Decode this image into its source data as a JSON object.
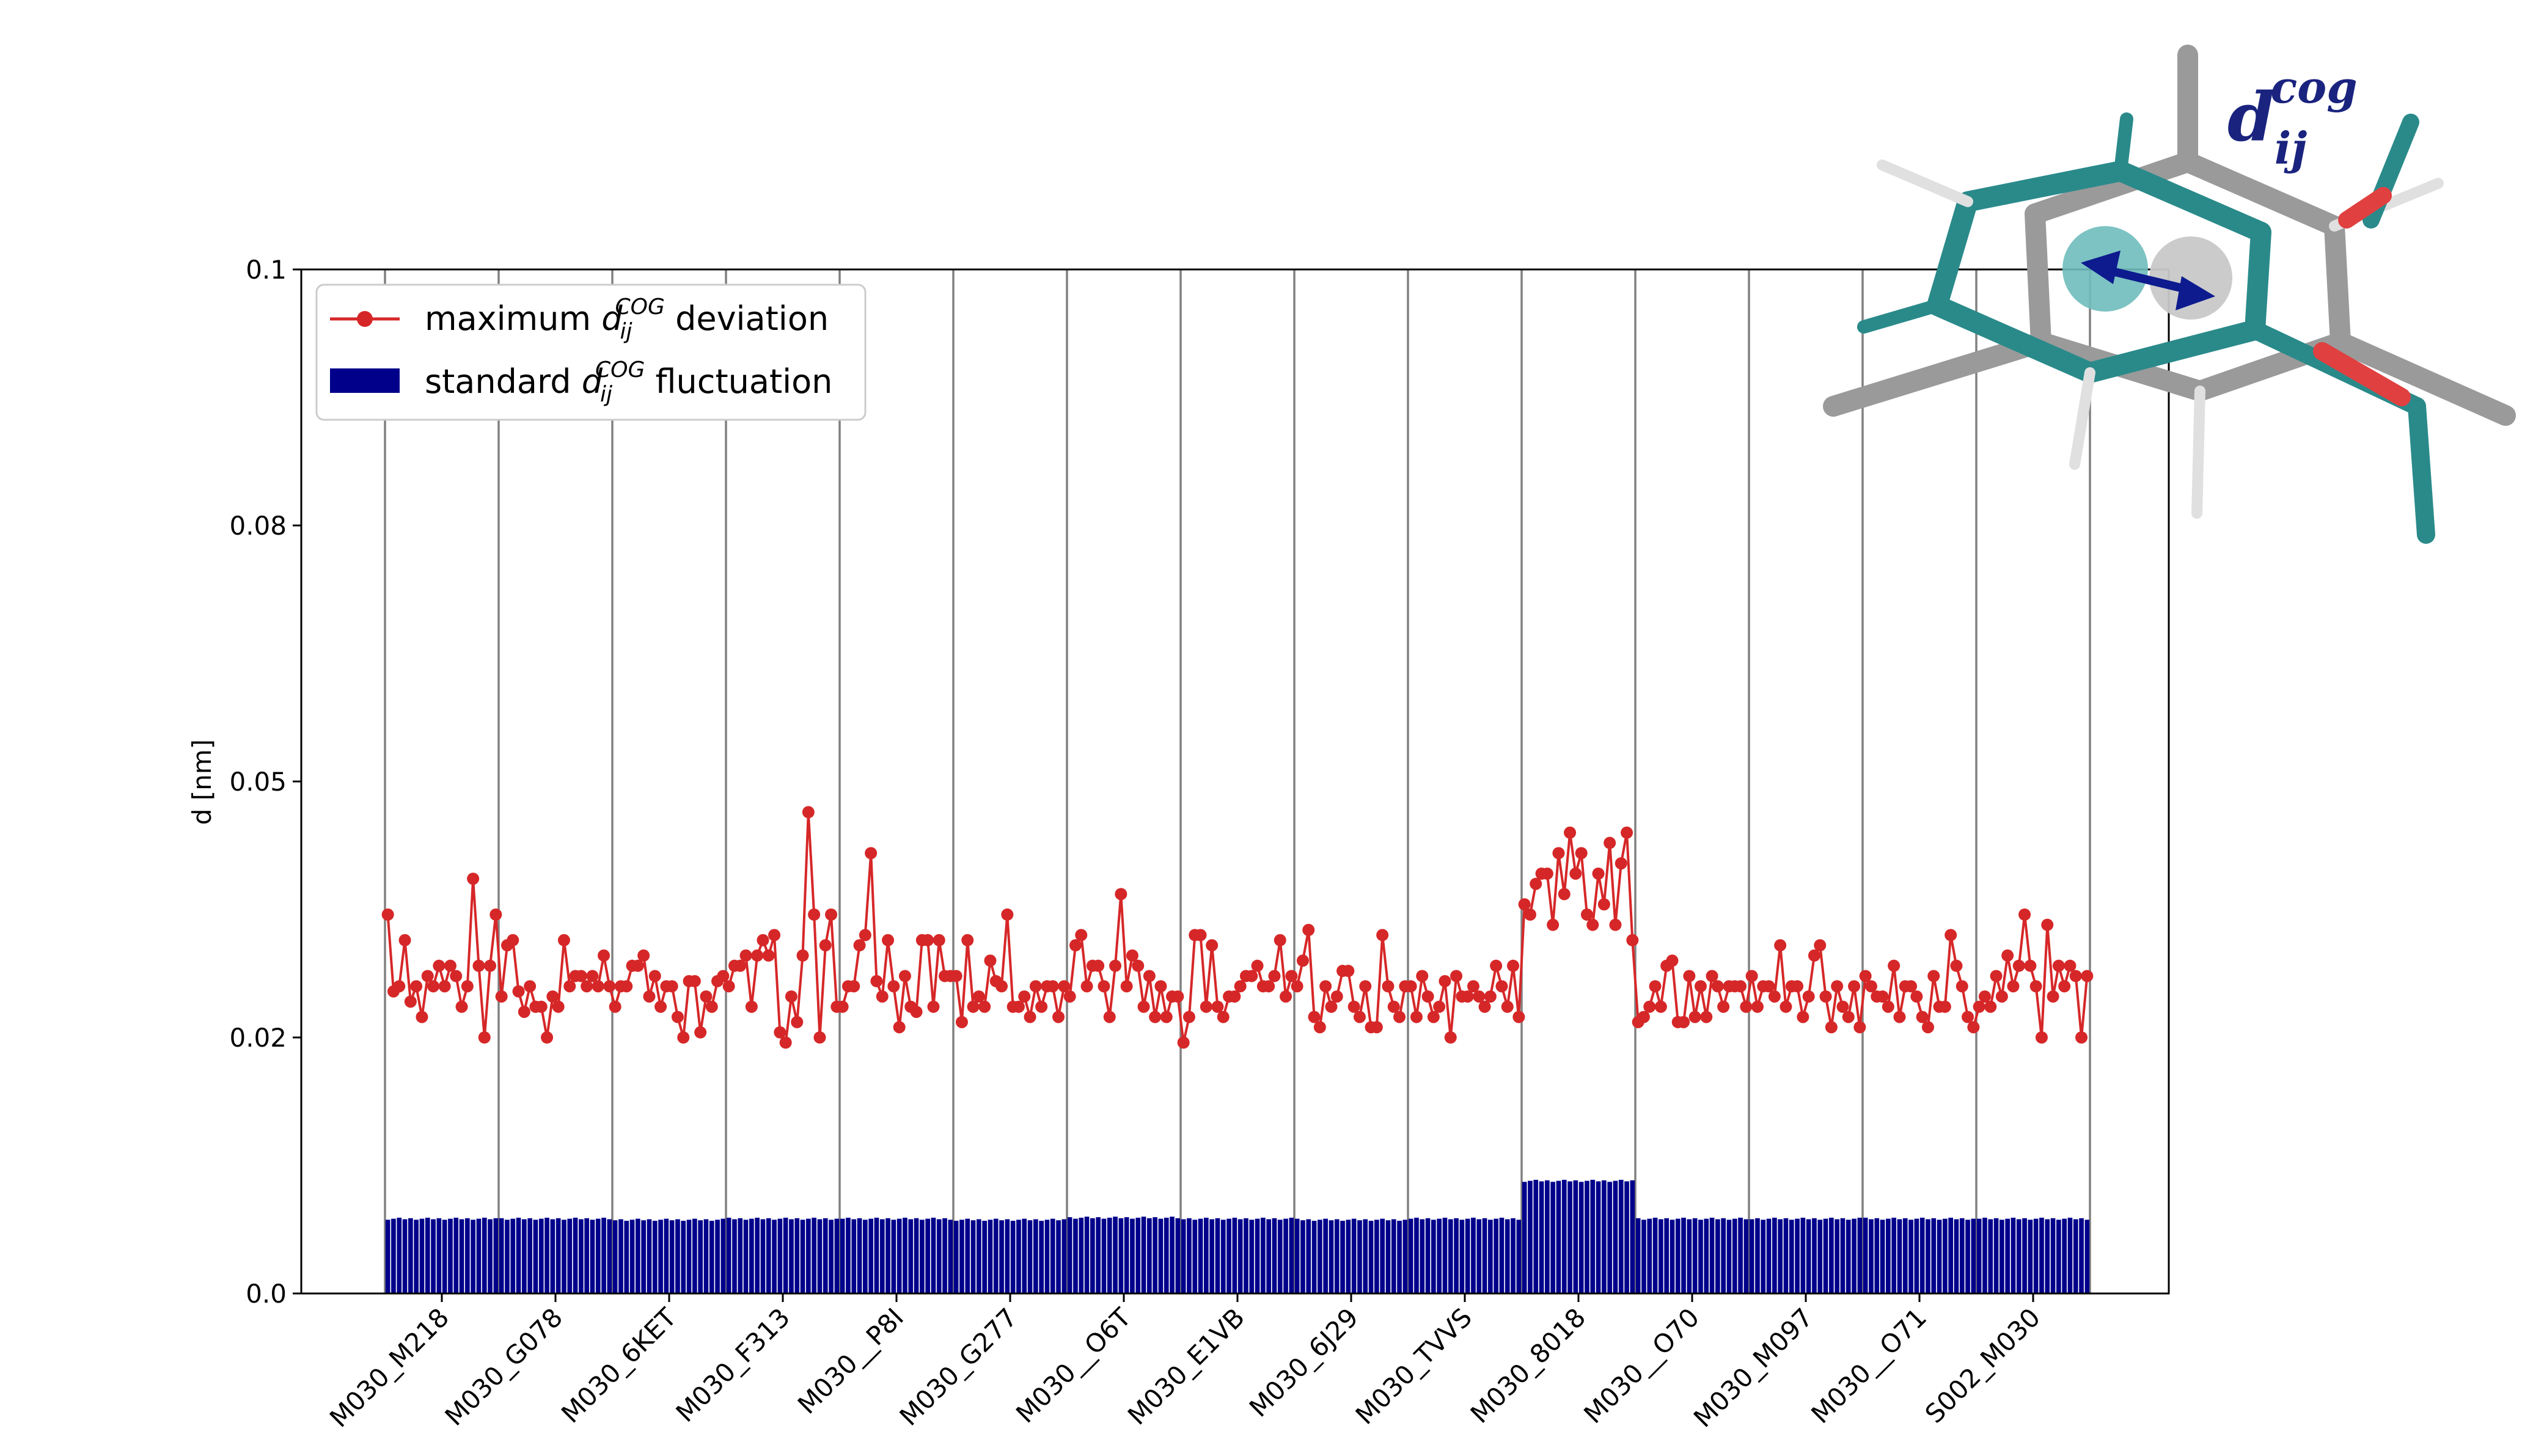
{
  "chart_data": {
    "type": "bar",
    "ylabel": "d [nm]",
    "ylim": [
      0.0,
      0.1
    ],
    "yticks": [
      "0.0",
      "0.02",
      "0.05",
      "0.08",
      "0.1"
    ],
    "ytick_values": [
      0.0,
      0.025,
      0.05,
      0.075,
      0.1
    ],
    "grid": "vertical separators between groups",
    "legend_position": "top-left",
    "categories": [
      "M030_M218",
      "M030_G078",
      "M030_6KET",
      "M030_F313",
      "M030__P8I",
      "M030_G277",
      "M030__O6T",
      "M030_E1VB",
      "M030_6J29",
      "M030_TVVS",
      "M030_8018",
      "M030__O70",
      "M030_M097",
      "M030__O71",
      "S002_M030"
    ],
    "points_per_group": 20,
    "series": [
      {
        "name": "maximum d_ij^COG deviation",
        "type": "line",
        "color": "#d62728",
        "values": [
          [
            0.037,
            0.0295,
            0.03,
            0.0345,
            0.0285,
            0.03,
            0.027,
            0.031,
            0.03,
            0.032,
            0.03,
            0.032,
            0.031,
            0.028,
            0.03,
            0.0405,
            0.032,
            0.025,
            0.032,
            0.037
          ],
          [
            0.029,
            0.034,
            0.0345,
            0.0295,
            0.0275,
            0.03,
            0.028,
            0.028,
            0.025,
            0.029,
            0.028,
            0.0345,
            0.03,
            0.031,
            0.031,
            0.03,
            0.031,
            0.03,
            0.033,
            0.03
          ],
          [
            0.028,
            0.03,
            0.03,
            0.032,
            0.032,
            0.033,
            0.029,
            0.031,
            0.028,
            0.03,
            0.03,
            0.027,
            0.025,
            0.0305,
            0.0305,
            0.0255,
            0.029,
            0.028,
            0.0305,
            0.031
          ],
          [
            0.03,
            0.032,
            0.032,
            0.033,
            0.028,
            0.033,
            0.0345,
            0.033,
            0.035,
            0.0255,
            0.0245,
            0.029,
            0.0265,
            0.033,
            0.047,
            0.037,
            0.025,
            0.034,
            0.037,
            0.028
          ],
          [
            0.028,
            0.03,
            0.03,
            0.034,
            0.035,
            0.043,
            0.0305,
            0.029,
            0.0345,
            0.03,
            0.026,
            0.031,
            0.028,
            0.0275,
            0.0345,
            0.0345,
            0.028,
            0.0345,
            0.031,
            0.031
          ],
          [
            0.031,
            0.0265,
            0.0345,
            0.028,
            0.029,
            0.028,
            0.0325,
            0.0305,
            0.03,
            0.037,
            0.028,
            0.028,
            0.029,
            0.027,
            0.03,
            0.028,
            0.03,
            0.03,
            0.027,
            0.03
          ],
          [
            0.029,
            0.034,
            0.035,
            0.03,
            0.032,
            0.032,
            0.03,
            0.027,
            0.032,
            0.039,
            0.03,
            0.033,
            0.032,
            0.028,
            0.031,
            0.027,
            0.03,
            0.027,
            0.029,
            0.029
          ],
          [
            0.0245,
            0.027,
            0.035,
            0.035,
            0.028,
            0.034,
            0.028,
            0.027,
            0.029,
            0.029,
            0.03,
            0.031,
            0.031,
            0.032,
            0.03,
            0.03,
            0.031,
            0.0345,
            0.029,
            0.031
          ],
          [
            0.03,
            0.0325,
            0.0355,
            0.027,
            0.026,
            0.03,
            0.028,
            0.029,
            0.0315,
            0.0315,
            0.028,
            0.027,
            0.03,
            0.026,
            0.026,
            0.035,
            0.03,
            0.028,
            0.027,
            0.03
          ],
          [
            0.03,
            0.027,
            0.031,
            0.029,
            0.027,
            0.028,
            0.0305,
            0.025,
            0.031,
            0.029,
            0.029,
            0.03,
            0.029,
            0.028,
            0.029,
            0.032,
            0.03,
            0.028,
            0.032,
            0.027
          ],
          [
            0.038,
            0.037,
            0.04,
            0.041,
            0.041,
            0.036,
            0.043,
            0.039,
            0.045,
            0.041,
            0.043,
            0.037,
            0.036,
            0.041,
            0.038,
            0.044,
            0.036,
            0.042,
            0.045,
            0.0345
          ],
          [
            0.0265,
            0.027,
            0.028,
            0.03,
            0.028,
            0.032,
            0.0325,
            0.0265,
            0.0265,
            0.031,
            0.027,
            0.03,
            0.027,
            0.031,
            0.03,
            0.028,
            0.03,
            0.03,
            0.03,
            0.028
          ],
          [
            0.031,
            0.028,
            0.03,
            0.03,
            0.029,
            0.034,
            0.028,
            0.03,
            0.03,
            0.027,
            0.029,
            0.033,
            0.034,
            0.029,
            0.026,
            0.03,
            0.028,
            0.027,
            0.03,
            0.026
          ],
          [
            0.031,
            0.03,
            0.029,
            0.029,
            0.028,
            0.032,
            0.027,
            0.03,
            0.03,
            0.029,
            0.027,
            0.026,
            0.031,
            0.028,
            0.028,
            0.035,
            0.032,
            0.03,
            0.027,
            0.026
          ],
          [
            0.028,
            0.029,
            0.028,
            0.031,
            0.029,
            0.033,
            0.03,
            0.032,
            0.037,
            0.032,
            0.03,
            0.025,
            0.036,
            0.029,
            0.032,
            0.03,
            0.032,
            0.031,
            0.025,
            0.031
          ]
        ]
      },
      {
        "name": "standard d_ij^COG fluctuation",
        "type": "bar",
        "color": "#00008b",
        "group_levels": [
          0.0073,
          0.0073,
          0.0072,
          0.0073,
          0.0073,
          0.0072,
          0.0074,
          0.0073,
          0.0072,
          0.0073,
          0.011,
          0.0073,
          0.0073,
          0.0073,
          0.0073
        ]
      }
    ]
  },
  "legend": {
    "line_prefix": "maximum ",
    "bar_prefix": "standard ",
    "symbol_base": "d",
    "symbol_sub": "ij",
    "symbol_sup": "COG",
    "line_suffix": " deviation",
    "bar_suffix": " fluctuation"
  },
  "inset": {
    "label_base": "d",
    "label_sub": "ij",
    "label_sup": "cog",
    "label_color": "#1a237e"
  },
  "colors": {
    "line": "#d62728",
    "bar": "#00008b",
    "separator": "#808080",
    "teal": "#2a8a8a",
    "gray": "#9a9a9a",
    "oxygen": "#e04040",
    "arrow": "#0d1b8f"
  }
}
